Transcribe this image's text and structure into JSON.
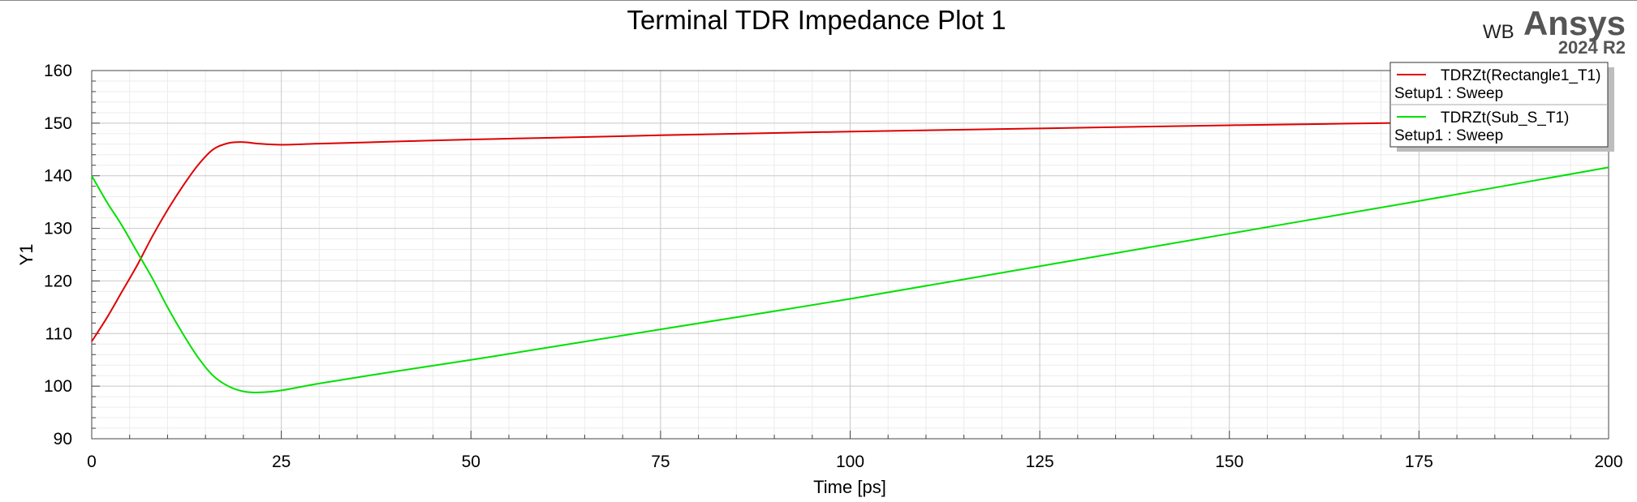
{
  "chart_data": {
    "type": "line",
    "title": "Terminal TDR Impedance Plot 1",
    "xlabel": "Time [ps]",
    "ylabel": "Y1",
    "xlim": [
      0,
      200
    ],
    "ylim": [
      90,
      160
    ],
    "xticks": [
      0,
      25,
      50,
      75,
      100,
      125,
      150,
      175,
      200
    ],
    "yticks": [
      90,
      100,
      110,
      120,
      130,
      140,
      150,
      160
    ],
    "grid": true,
    "legend_position": "top-right",
    "series": [
      {
        "name": "TDRZt(Rectangle1_T1)",
        "subtitle": "Setup1 : Sweep",
        "color": "#e00000",
        "x": [
          0,
          2,
          4,
          6,
          8,
          10,
          12,
          14,
          16,
          18,
          20,
          22,
          25,
          30,
          40,
          50,
          60,
          75,
          100,
          125,
          150,
          175,
          200
        ],
        "y": [
          108.5,
          113,
          118,
          123,
          128.5,
          133.5,
          138,
          142,
          145,
          146.2,
          146.4,
          146.1,
          145.9,
          146.1,
          146.5,
          146.9,
          147.2,
          147.7,
          148.4,
          149.0,
          149.6,
          150.1,
          150.7
        ]
      },
      {
        "name": "TDRZt(Sub_S_T1)",
        "subtitle": "Setup1 : Sweep",
        "color": "#00e000",
        "x": [
          0,
          2,
          4,
          6,
          8,
          10,
          12,
          14,
          16,
          18,
          20,
          22,
          25,
          30,
          40,
          50,
          60,
          75,
          100,
          125,
          150,
          175,
          200
        ],
        "y": [
          140,
          135,
          130.5,
          125.5,
          120.5,
          115,
          110,
          105.5,
          102,
          100,
          99,
          98.8,
          99.2,
          100.5,
          102.8,
          105,
          107.3,
          110.8,
          116.6,
          122.8,
          129,
          135.2,
          141.6
        ]
      }
    ]
  },
  "branding": {
    "wb": "WB",
    "product": "Ansys",
    "version": "2024 R2"
  }
}
